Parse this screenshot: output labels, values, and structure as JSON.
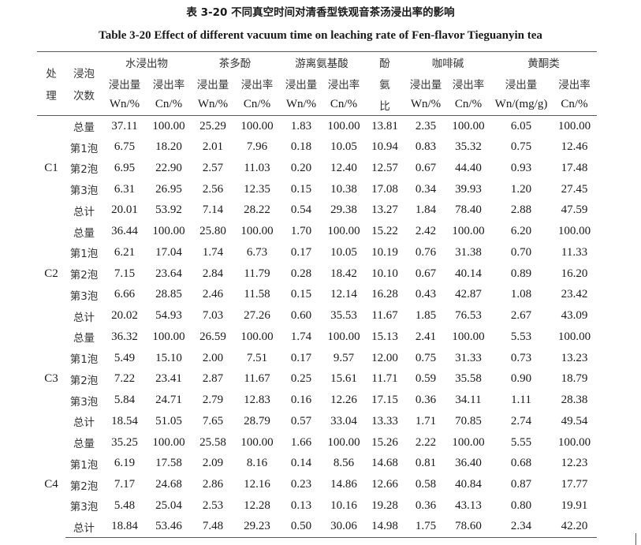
{
  "caption_zh": "表 3-20  不同真空时间对清香型铁观音茶汤浸出率的影响",
  "caption_en": "Table 3-20 Effect of different vacuum time on leaching rate of Fen-flavor Tieguanyin tea",
  "header": {
    "treatment": [
      "处",
      "理"
    ],
    "brew": [
      "浸泡",
      "次数"
    ],
    "groups": [
      "水浸出物",
      "茶多酚",
      "游离氨基酸",
      "咖啡碱",
      "黄酮类"
    ],
    "ratio": [
      "酚",
      "氨",
      "比"
    ],
    "sub": [
      "浸出量",
      "浸出率",
      "浸出量",
      "浸出率",
      "浸出量",
      "浸出率",
      "浸出量",
      "浸出率",
      "浸出量",
      "浸出率"
    ],
    "units": [
      "Wn/%",
      "Cn/%",
      "Wn/%",
      "Cn/%",
      "Wn/%",
      "Cn/%",
      "Wn/%",
      "Cn/%",
      "Wn/(mg/g)",
      "Cn/%"
    ]
  },
  "groups": [
    {
      "treatment": "C1",
      "rows": [
        [
          "总量",
          "37.11",
          "100.00",
          "25.29",
          "100.00",
          "1.83",
          "100.00",
          "13.81",
          "2.35",
          "100.00",
          "6.05",
          "100.00"
        ],
        [
          "第1泡",
          "6.75",
          "18.20",
          "2.01",
          "7.96",
          "0.18",
          "10.05",
          "10.94",
          "0.83",
          "35.32",
          "0.75",
          "12.46"
        ],
        [
          "第2泡",
          "6.95",
          "22.90",
          "2.57",
          "11.03",
          "0.20",
          "12.40",
          "12.57",
          "0.67",
          "44.40",
          "0.93",
          "17.48"
        ],
        [
          "第3泡",
          "6.31",
          "26.95",
          "2.56",
          "12.35",
          "0.15",
          "10.38",
          "17.08",
          "0.34",
          "39.93",
          "1.20",
          "27.45"
        ],
        [
          "总计",
          "20.01",
          "53.92",
          "7.14",
          "28.22",
          "0.54",
          "29.38",
          "13.27",
          "1.84",
          "78.40",
          "2.88",
          "47.59"
        ]
      ]
    },
    {
      "treatment": "C2",
      "rows": [
        [
          "总量",
          "36.44",
          "100.00",
          "25.80",
          "100.00",
          "1.70",
          "100.00",
          "15.22",
          "2.42",
          "100.00",
          "6.20",
          "100.00"
        ],
        [
          "第1泡",
          "6.21",
          "17.04",
          "1.74",
          "6.73",
          "0.17",
          "10.05",
          "10.19",
          "0.76",
          "31.38",
          "0.70",
          "11.33"
        ],
        [
          "第2泡",
          "7.15",
          "23.64",
          "2.84",
          "11.79",
          "0.28",
          "18.42",
          "10.10",
          "0.67",
          "40.14",
          "0.89",
          "16.20"
        ],
        [
          "第3泡",
          "6.66",
          "28.85",
          "2.46",
          "11.58",
          "0.15",
          "12.14",
          "16.28",
          "0.43",
          "42.87",
          "1.08",
          "23.42"
        ],
        [
          "总计",
          "20.02",
          "54.93",
          "7.03",
          "27.26",
          "0.60",
          "35.53",
          "11.67",
          "1.85",
          "76.53",
          "2.67",
          "43.09"
        ]
      ]
    },
    {
      "treatment": "C3",
      "rows": [
        [
          "总量",
          "36.32",
          "100.00",
          "26.59",
          "100.00",
          "1.74",
          "100.00",
          "15.13",
          "2.41",
          "100.00",
          "5.53",
          "100.00"
        ],
        [
          "第1泡",
          "5.49",
          "15.10",
          "2.00",
          "7.51",
          "0.17",
          "9.57",
          "12.00",
          "0.75",
          "31.33",
          "0.73",
          "13.23"
        ],
        [
          "第2泡",
          "7.22",
          "23.41",
          "2.87",
          "11.67",
          "0.25",
          "15.61",
          "11.71",
          "0.59",
          "35.58",
          "0.90",
          "18.79"
        ],
        [
          "第3泡",
          "5.84",
          "24.71",
          "2.79",
          "12.83",
          "0.16",
          "12.26",
          "17.15",
          "0.36",
          "34.11",
          "1.11",
          "28.38"
        ],
        [
          "总计",
          "18.54",
          "51.05",
          "7.65",
          "28.79",
          "0.57",
          "33.04",
          "13.33",
          "1.71",
          "70.85",
          "2.74",
          "49.54"
        ]
      ]
    },
    {
      "treatment": "C4",
      "rows": [
        [
          "总量",
          "35.25",
          "100.00",
          "25.58",
          "100.00",
          "1.66",
          "100.00",
          "15.26",
          "2.22",
          "100.00",
          "5.55",
          "100.00"
        ],
        [
          "第1泡",
          "6.19",
          "17.58",
          "2.09",
          "8.16",
          "0.14",
          "8.56",
          "14.68",
          "0.81",
          "36.40",
          "0.68",
          "12.23"
        ],
        [
          "第2泡",
          "7.17",
          "24.68",
          "2.86",
          "12.16",
          "0.23",
          "14.86",
          "12.66",
          "0.58",
          "40.84",
          "0.87",
          "17.77"
        ],
        [
          "第3泡",
          "5.48",
          "25.04",
          "2.53",
          "12.28",
          "0.13",
          "10.16",
          "19.28",
          "0.36",
          "43.13",
          "0.80",
          "19.91"
        ],
        [
          "总计",
          "18.84",
          "53.46",
          "7.48",
          "29.23",
          "0.50",
          "30.06",
          "14.98",
          "1.75",
          "78.60",
          "2.34",
          "42.20"
        ]
      ]
    }
  ]
}
